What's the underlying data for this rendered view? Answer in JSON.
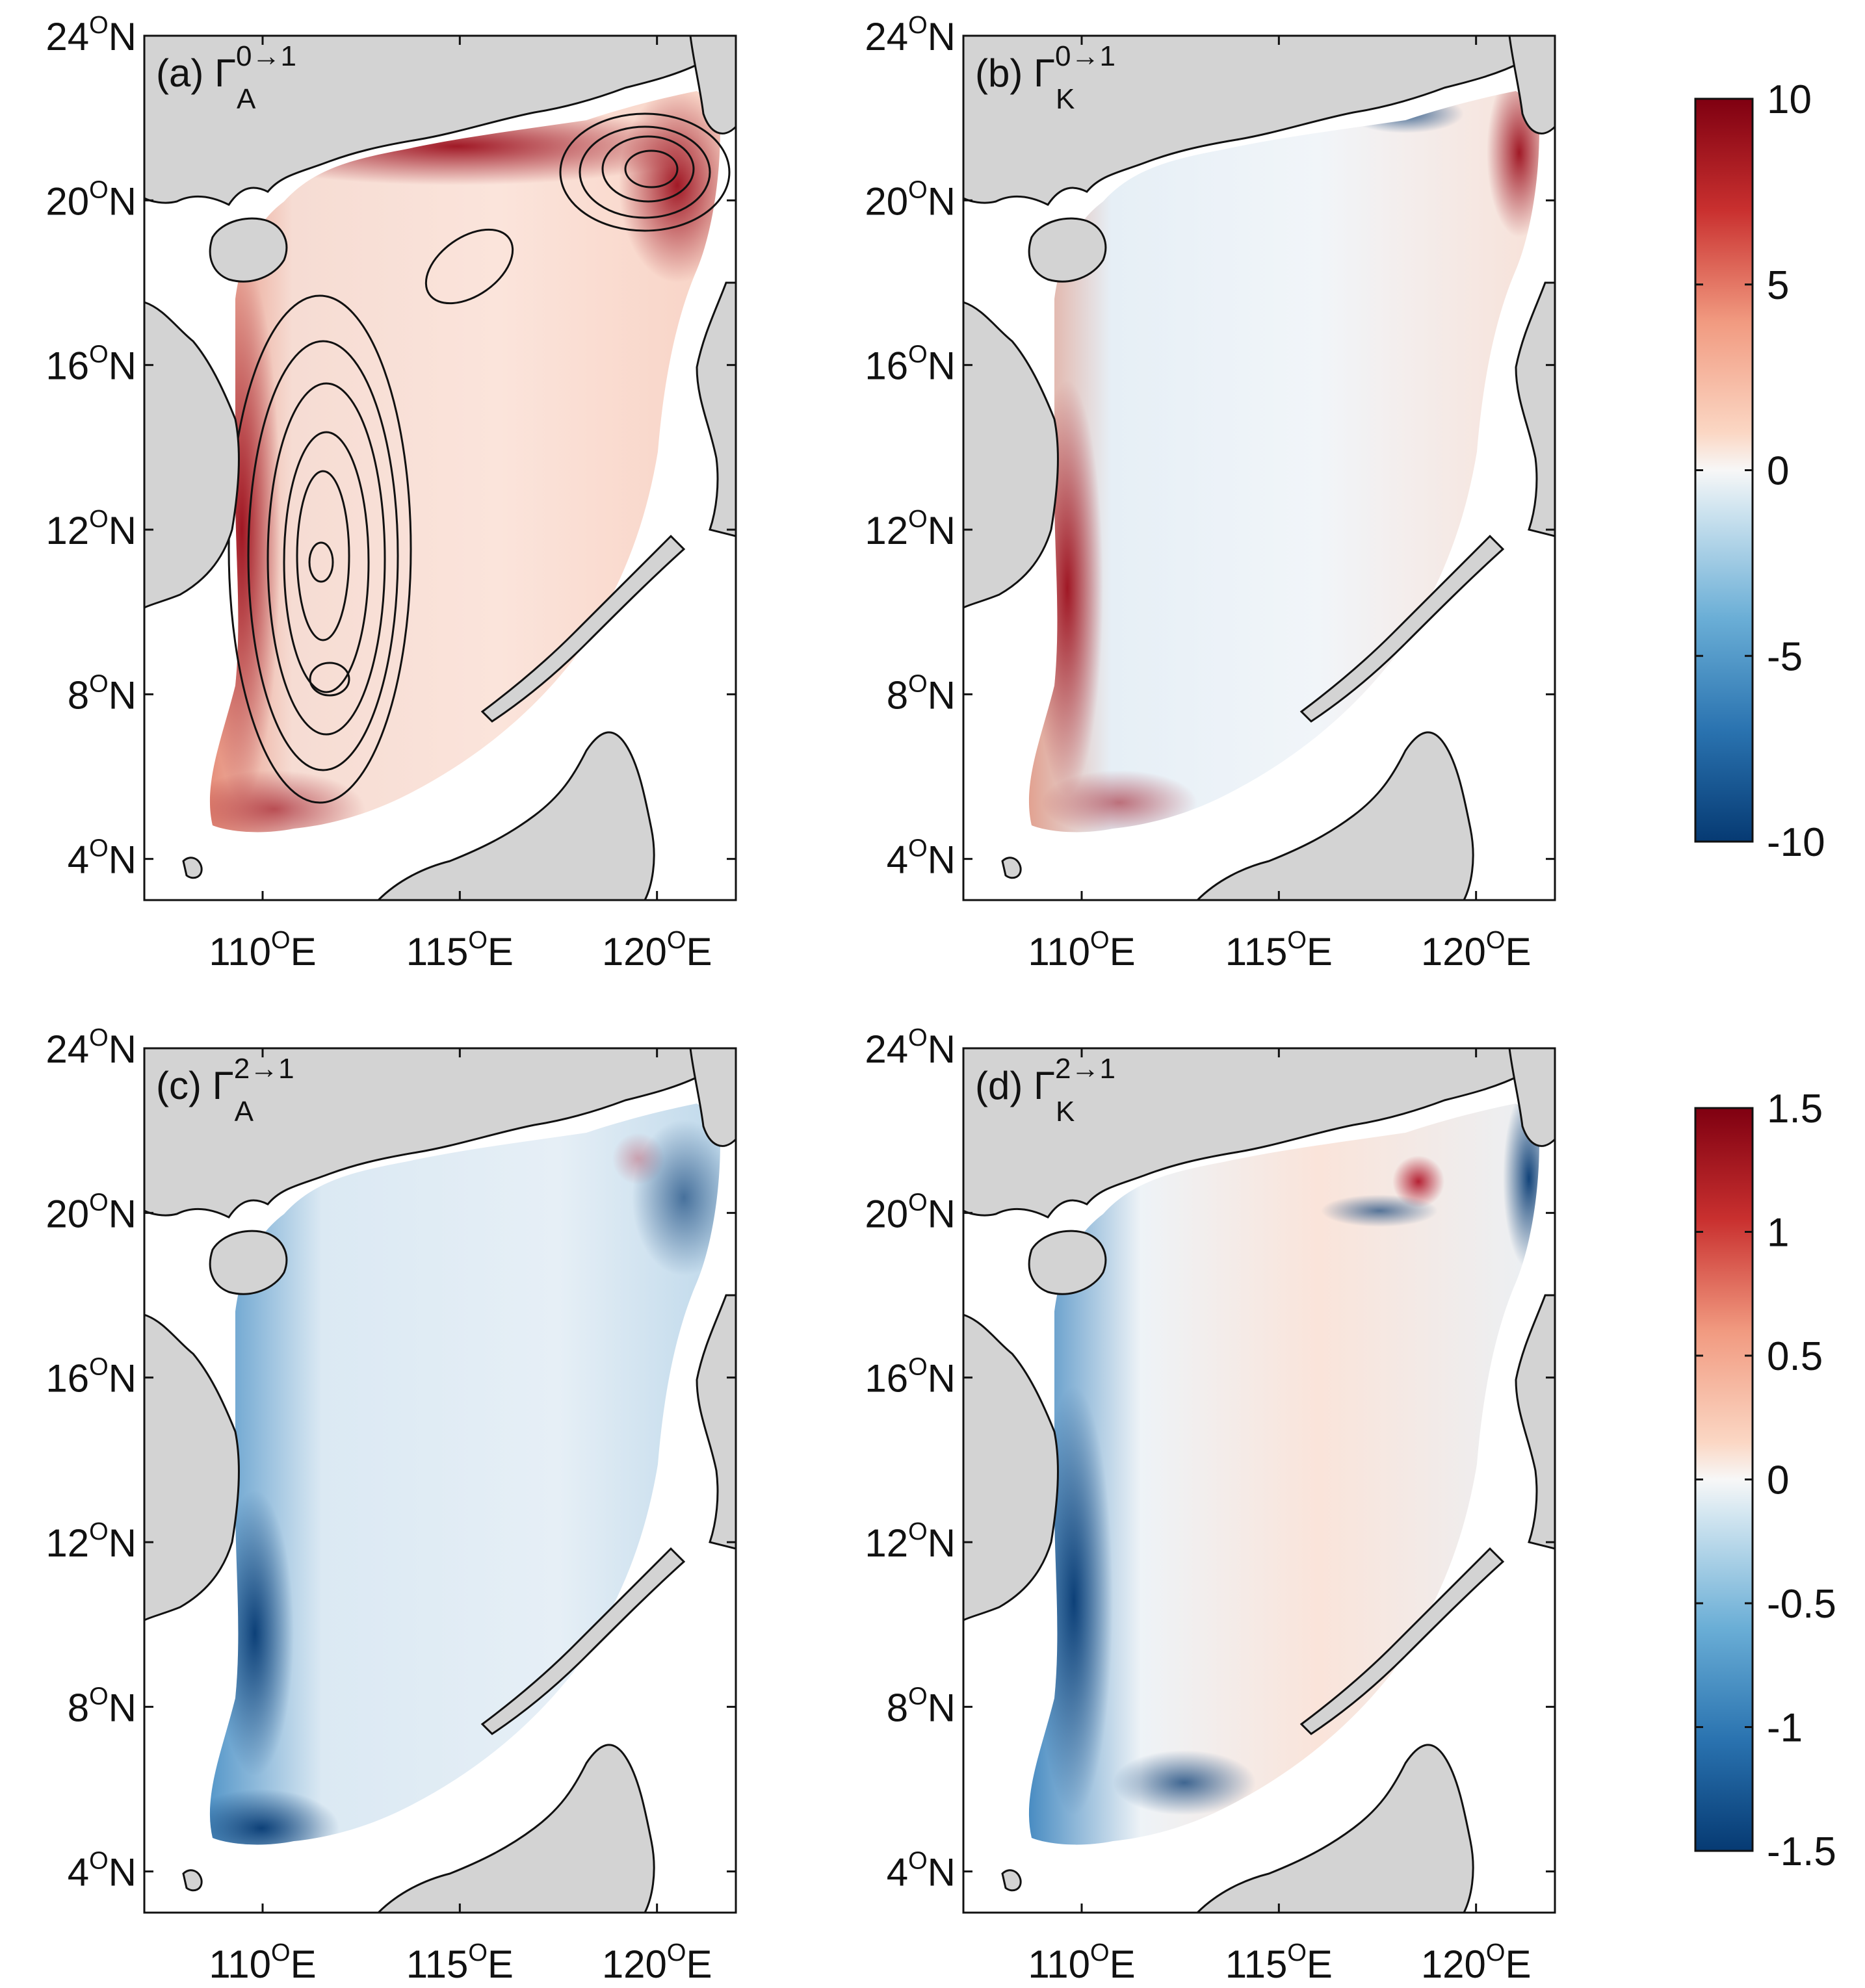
{
  "figure": {
    "lat_labels": [
      "24",
      "20",
      "16",
      "12",
      "8",
      "4"
    ],
    "lat_suffix": "N",
    "lon_labels": [
      "110",
      "115",
      "120"
    ],
    "lon_suffix": "E",
    "degree_symbol": "O",
    "land_color": "#d3d3d3",
    "colors": {
      "dark_red": "#7f0011",
      "red": "#d6483c",
      "light_red": "#f7c4ac",
      "white": "#ffffff",
      "light_blue": "#cfe3ef",
      "blue": "#3d8fc4",
      "dark_blue": "#063a73"
    }
  },
  "panels": [
    {
      "id": "a",
      "label_prefix": "(a) ",
      "symbol": "Γ",
      "sup": "0→1",
      "sub": "A",
      "has_contours": true
    },
    {
      "id": "b",
      "label_prefix": "(b) ",
      "symbol": "Γ",
      "sup": "0→1",
      "sub": "K",
      "has_contours": false
    },
    {
      "id": "c",
      "label_prefix": "(c) ",
      "symbol": "Γ",
      "sup": "2→1",
      "sub": "A",
      "has_contours": false
    },
    {
      "id": "d",
      "label_prefix": "(d) ",
      "symbol": "Γ",
      "sup": "2→1",
      "sub": "K",
      "has_contours": false
    }
  ],
  "colorbars": [
    {
      "id": "top",
      "ticks": [
        "10",
        "5",
        "0",
        "-5",
        "-10"
      ],
      "min": -10,
      "max": 10
    },
    {
      "id": "bottom",
      "ticks": [
        "1.5",
        "1",
        "0.5",
        "0",
        "-0.5",
        "-1",
        "-1.5"
      ],
      "min": -1.5,
      "max": 1.5
    }
  ]
}
